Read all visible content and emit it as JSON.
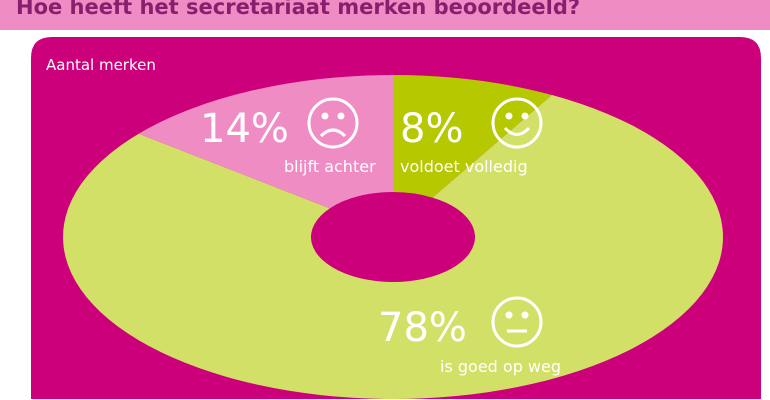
{
  "chart_data": {
    "type": "donut",
    "title": "Hoe heeft het secretariaat merken beoordeeld?",
    "subtitle": "Aantal merken",
    "categories": [
      "voldoet volledig",
      "is goed op weg",
      "blijft achter"
    ],
    "values": [
      8,
      78,
      14
    ],
    "value_labels": [
      "8%",
      "78%",
      "14%"
    ],
    "colors": [
      "#b5c800",
      "#d3e068",
      "#f08cc4"
    ]
  }
}
